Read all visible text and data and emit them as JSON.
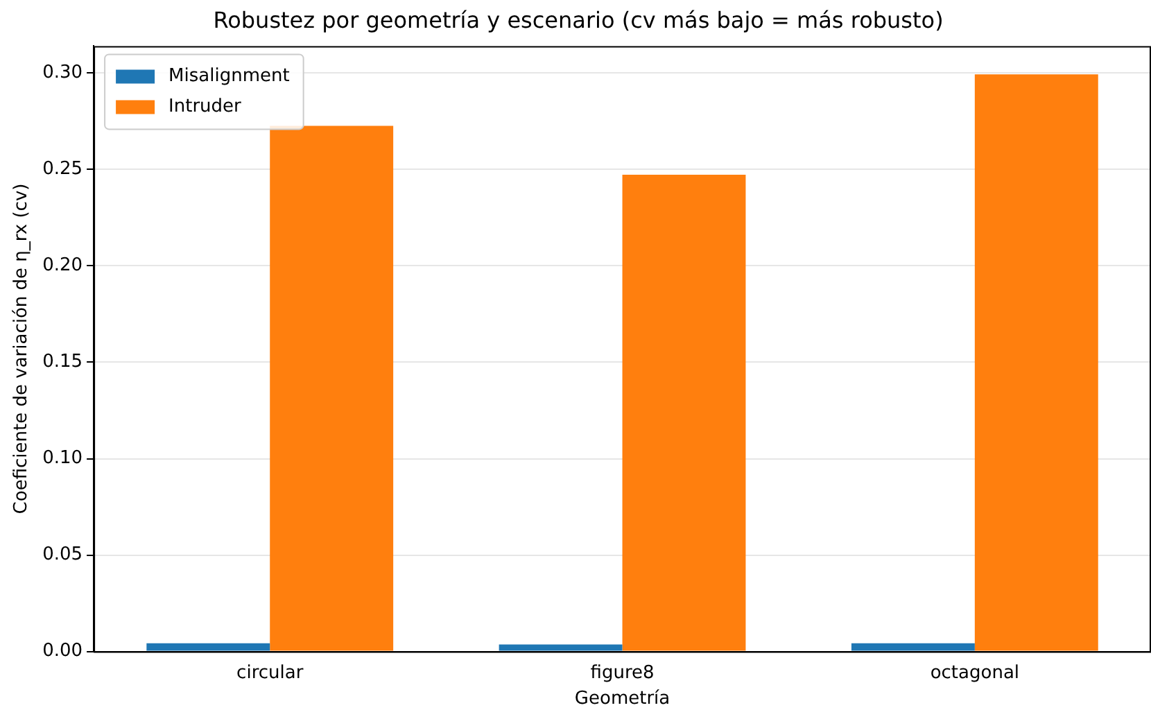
{
  "chart_data": {
    "type": "bar",
    "title": "Robustez por geometría y escenario (cv más bajo = más robusto)",
    "xlabel": "Geometría",
    "ylabel": "Coeficiente de variación de η_rx (cv)",
    "categories": [
      "circular",
      "figure8",
      "octagonal"
    ],
    "series": [
      {
        "name": "Misalignment",
        "color": "#1f77b4",
        "values": [
          0.0043,
          0.0036,
          0.0043
        ]
      },
      {
        "name": "Intruder",
        "color": "#ff7f0e",
        "values": [
          0.2726,
          0.2473,
          0.2993
        ]
      }
    ],
    "ylim": [
      0,
      0.314
    ],
    "yticks": [
      {
        "value": 0,
        "label": "0.00"
      },
      {
        "value": 0.05,
        "label": "0.05"
      },
      {
        "value": 0.1,
        "label": "0.10"
      },
      {
        "value": 0.15,
        "label": "0.15"
      },
      {
        "value": 0.2,
        "label": "0.20"
      },
      {
        "value": 0.25,
        "label": "0.25"
      },
      {
        "value": 0.3,
        "label": "0.30"
      }
    ],
    "grid": "y",
    "legend": "top left"
  }
}
